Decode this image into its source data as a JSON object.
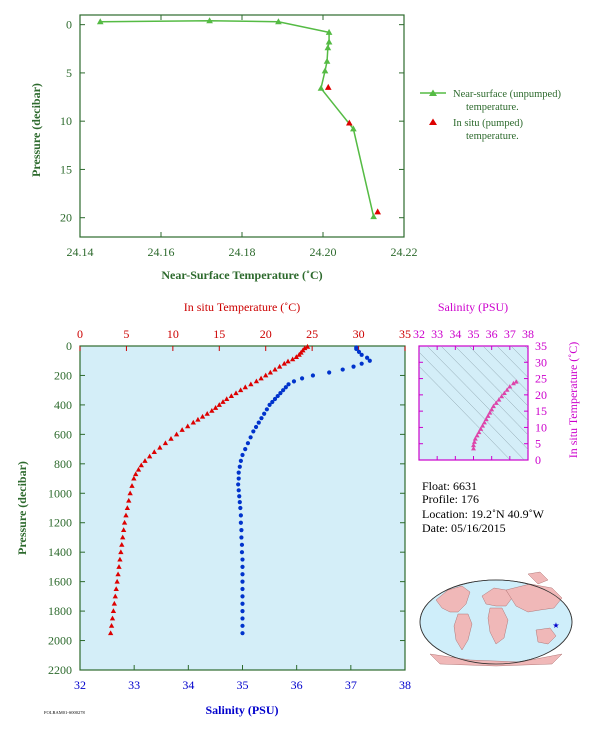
{
  "chart_data": [
    {
      "type": "line",
      "xlabel": "Near-Surface Temperature (˚C)",
      "ylabel": "Pressure (decibar)",
      "xlim": [
        24.14,
        24.22
      ],
      "ylim": [
        22,
        -1
      ],
      "xticks": [
        24.14,
        24.16,
        24.18,
        24.2,
        24.22
      ],
      "xtick_labels": [
        "24.14",
        "24.16",
        "24.18",
        "24.20",
        "24.22"
      ],
      "yticks": [
        0,
        5,
        10,
        15,
        20
      ],
      "ytick_labels": [
        "0",
        "5",
        "10",
        "15",
        "20"
      ],
      "legend": [
        "Near-surface (unpumped) temperature.",
        "In situ (pumped) temperature."
      ],
      "series": [
        {
          "name": "Near-surface (unpumped) temperature.",
          "color": "#55bb44",
          "marker": "triangle",
          "x": [
            24.145,
            24.172,
            24.189,
            24.2015,
            24.2015,
            24.2012,
            24.201,
            24.2005,
            24.1995,
            24.2075,
            24.2125
          ],
          "y": [
            -0.3,
            -0.4,
            -0.3,
            0.8,
            1.8,
            2.4,
            3.8,
            4.8,
            6.6,
            10.8,
            19.9
          ]
        },
        {
          "name": "In situ (pumped) temperature.",
          "color": "#dd0000",
          "marker": "triangle",
          "x": [
            24.2013,
            24.2065,
            24.2135
          ],
          "y": [
            6.5,
            10.2,
            19.4
          ]
        }
      ]
    },
    {
      "type": "scatter",
      "xlabel": "Salinity (PSU)",
      "ylabel": "Pressure (decibar)",
      "x2label": "In situ Temperature (˚C)",
      "xlim": [
        32,
        38
      ],
      "x2lim": [
        0,
        35
      ],
      "ylim": [
        2200,
        0
      ],
      "xticks": [
        32,
        33,
        34,
        35,
        36,
        37,
        38
      ],
      "xtick_labels": [
        "32",
        "33",
        "34",
        "35",
        "36",
        "37",
        "38"
      ],
      "x2ticks": [
        0,
        5,
        10,
        15,
        20,
        25,
        30,
        35
      ],
      "x2tick_labels": [
        "0",
        "5",
        "10",
        "15",
        "20",
        "25",
        "30",
        "35"
      ],
      "yticks": [
        0,
        200,
        400,
        600,
        800,
        1000,
        1200,
        1400,
        1600,
        1800,
        2000,
        2200
      ],
      "ytick_labels": [
        "0",
        "200",
        "400",
        "600",
        "800",
        "1000",
        "1200",
        "1400",
        "1600",
        "1800",
        "2000",
        "2200"
      ],
      "background": "#d4eef8",
      "temperature_profile": {
        "color": "#dd0000",
        "marker": "triangle",
        "points": [
          [
            24.5,
            5
          ],
          [
            24.2,
            15
          ],
          [
            24.0,
            30
          ],
          [
            23.8,
            45
          ],
          [
            23.6,
            60
          ],
          [
            23.3,
            75
          ],
          [
            22.9,
            90
          ],
          [
            22.4,
            105
          ],
          [
            22.0,
            120
          ],
          [
            21.5,
            140
          ],
          [
            21.0,
            160
          ],
          [
            20.5,
            180
          ],
          [
            20.0,
            200
          ],
          [
            19.5,
            220
          ],
          [
            19.0,
            240
          ],
          [
            18.4,
            260
          ],
          [
            17.8,
            280
          ],
          [
            17.3,
            300
          ],
          [
            16.8,
            320
          ],
          [
            16.3,
            340
          ],
          [
            15.8,
            360
          ],
          [
            15.4,
            380
          ],
          [
            15.0,
            400
          ],
          [
            14.6,
            420
          ],
          [
            14.2,
            440
          ],
          [
            13.7,
            460
          ],
          [
            13.2,
            480
          ],
          [
            12.7,
            500
          ],
          [
            12.2,
            520
          ],
          [
            11.6,
            545
          ],
          [
            11.0,
            570
          ],
          [
            10.4,
            600
          ],
          [
            9.8,
            630
          ],
          [
            9.2,
            660
          ],
          [
            8.6,
            690
          ],
          [
            8.0,
            720
          ],
          [
            7.5,
            750
          ],
          [
            7.0,
            780
          ],
          [
            6.6,
            810
          ],
          [
            6.3,
            840
          ],
          [
            6.0,
            870
          ],
          [
            5.8,
            900
          ],
          [
            5.6,
            950
          ],
          [
            5.4,
            1000
          ],
          [
            5.25,
            1050
          ],
          [
            5.1,
            1100
          ],
          [
            4.95,
            1150
          ],
          [
            4.8,
            1200
          ],
          [
            4.7,
            1250
          ],
          [
            4.6,
            1300
          ],
          [
            4.5,
            1350
          ],
          [
            4.4,
            1400
          ],
          [
            4.3,
            1450
          ],
          [
            4.2,
            1500
          ],
          [
            4.1,
            1550
          ],
          [
            4.0,
            1600
          ],
          [
            3.9,
            1650
          ],
          [
            3.8,
            1700
          ],
          [
            3.7,
            1750
          ],
          [
            3.6,
            1800
          ],
          [
            3.5,
            1850
          ],
          [
            3.4,
            1900
          ],
          [
            3.3,
            1950
          ]
        ]
      },
      "salinity_profile": {
        "color": "#0033cc",
        "marker": "dot",
        "points": [
          [
            37.1,
            10
          ],
          [
            37.1,
            20
          ],
          [
            37.15,
            40
          ],
          [
            37.2,
            60
          ],
          [
            37.3,
            80
          ],
          [
            37.35,
            100
          ],
          [
            37.2,
            120
          ],
          [
            37.05,
            140
          ],
          [
            36.85,
            160
          ],
          [
            36.6,
            180
          ],
          [
            36.3,
            200
          ],
          [
            36.1,
            220
          ],
          [
            35.95,
            240
          ],
          [
            35.85,
            260
          ],
          [
            35.8,
            280
          ],
          [
            35.75,
            300
          ],
          [
            35.7,
            320
          ],
          [
            35.65,
            340
          ],
          [
            35.6,
            360
          ],
          [
            35.55,
            380
          ],
          [
            35.5,
            400
          ],
          [
            35.45,
            430
          ],
          [
            35.4,
            460
          ],
          [
            35.35,
            490
          ],
          [
            35.3,
            520
          ],
          [
            35.25,
            550
          ],
          [
            35.2,
            580
          ],
          [
            35.15,
            620
          ],
          [
            35.1,
            660
          ],
          [
            35.05,
            700
          ],
          [
            35.0,
            740
          ],
          [
            34.97,
            780
          ],
          [
            34.95,
            820
          ],
          [
            34.93,
            860
          ],
          [
            34.93,
            900
          ],
          [
            34.92,
            940
          ],
          [
            34.93,
            980
          ],
          [
            34.94,
            1020
          ],
          [
            34.95,
            1060
          ],
          [
            34.96,
            1100
          ],
          [
            34.97,
            1150
          ],
          [
            34.97,
            1200
          ],
          [
            34.98,
            1250
          ],
          [
            34.98,
            1300
          ],
          [
            34.99,
            1350
          ],
          [
            34.99,
            1400
          ],
          [
            35.0,
            1450
          ],
          [
            35.0,
            1500
          ],
          [
            35.0,
            1550
          ],
          [
            35.0,
            1600
          ],
          [
            35.0,
            1650
          ],
          [
            35.0,
            1700
          ],
          [
            35.0,
            1750
          ],
          [
            35.0,
            1800
          ],
          [
            35.0,
            1850
          ],
          [
            35.0,
            1900
          ],
          [
            35.0,
            1950
          ]
        ]
      }
    },
    {
      "type": "scatter",
      "title": "Salinity (PSU)",
      "xlabel": "Salinity (PSU)",
      "ylabel": "In situ Temperature (˚C)",
      "xlim": [
        32,
        38
      ],
      "ylim": [
        0,
        35
      ],
      "xticks": [
        32,
        33,
        34,
        35,
        36,
        37,
        38
      ],
      "xtick_labels": [
        "32",
        "33",
        "34",
        "35",
        "36",
        "37",
        "38"
      ],
      "yticks": [
        0,
        5,
        10,
        15,
        20,
        25,
        30,
        35
      ],
      "ytick_labels": [
        "0",
        "5",
        "10",
        "15",
        "20",
        "25",
        "30",
        "35"
      ],
      "color": "#dd44aa",
      "points": [
        [
          35.0,
          3.5
        ],
        [
          35.0,
          4.5
        ],
        [
          35.05,
          5.5
        ],
        [
          35.1,
          6.5
        ],
        [
          35.2,
          7.5
        ],
        [
          35.3,
          8.5
        ],
        [
          35.4,
          9.5
        ],
        [
          35.5,
          10.5
        ],
        [
          35.6,
          11.5
        ],
        [
          35.7,
          12.5
        ],
        [
          35.8,
          13.5
        ],
        [
          35.9,
          14.5
        ],
        [
          36.0,
          15.5
        ],
        [
          36.1,
          16.5
        ],
        [
          36.25,
          17.5
        ],
        [
          36.4,
          18.5
        ],
        [
          36.55,
          19.5
        ],
        [
          36.7,
          20.5
        ],
        [
          36.85,
          21.5
        ],
        [
          37.0,
          22.5
        ],
        [
          37.2,
          23.5
        ],
        [
          37.35,
          24.0
        ]
      ]
    }
  ],
  "info": {
    "float": "Float:  6631",
    "profile": "Profile:  176",
    "location": "Location:  19.2˚N  40.9˚W",
    "date": "Date:  05/16/2015"
  },
  "footer_code": "FOLRAM01-S000278"
}
